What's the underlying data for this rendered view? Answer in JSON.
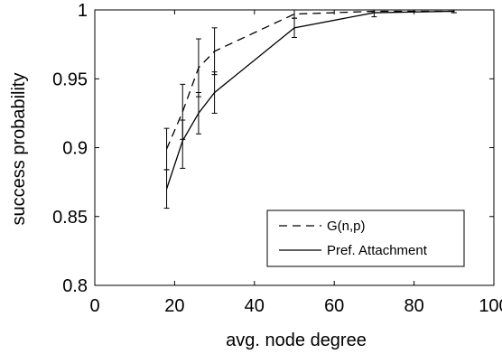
{
  "chart_data": {
    "type": "line",
    "xlabel": "avg. node degree",
    "ylabel": "success probability",
    "xlim": [
      0,
      100
    ],
    "ylim": [
      0.8,
      1.0
    ],
    "x_ticks": [
      "0",
      "20",
      "40",
      "60",
      "80",
      "100"
    ],
    "y_ticks": [
      "0.8",
      "0.85",
      "0.9",
      "0.95",
      "1"
    ],
    "grid": false,
    "legend_position": "bottom-right",
    "series": [
      {
        "name": "G(n,p)",
        "style": "dashed",
        "color": "#000000",
        "x": [
          18,
          22,
          26,
          30,
          50,
          70,
          90
        ],
        "y": [
          0.899,
          0.926,
          0.958,
          0.97,
          0.997,
          0.999,
          0.999
        ],
        "err_low": [
          0.884,
          0.906,
          0.937,
          0.953,
          0.994,
          0.998,
          0.998
        ],
        "err_high": [
          0.914,
          0.946,
          0.979,
          0.987,
          1.0,
          1.0,
          1.0
        ]
      },
      {
        "name": "Pref. Attachment",
        "style": "solid",
        "color": "#000000",
        "x": [
          18,
          22,
          26,
          30,
          50,
          70,
          90
        ],
        "y": [
          0.87,
          0.905,
          0.925,
          0.94,
          0.987,
          0.998,
          0.999
        ],
        "err_low": [
          0.856,
          0.885,
          0.91,
          0.925,
          0.98,
          0.995,
          0.998
        ],
        "err_high": [
          0.884,
          0.92,
          0.94,
          0.955,
          0.994,
          1.0,
          1.0
        ]
      }
    ]
  }
}
